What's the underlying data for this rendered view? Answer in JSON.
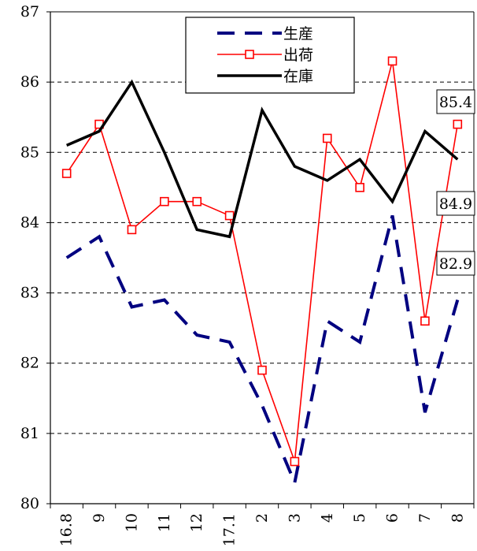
{
  "chart_data": {
    "type": "line",
    "categories": [
      "16.8",
      "9",
      "10",
      "11",
      "12",
      "17.1",
      "2",
      "3",
      "4",
      "5",
      "6",
      "7",
      "8"
    ],
    "ylim": [
      80,
      87
    ],
    "yticks": [
      80,
      81,
      82,
      83,
      84,
      85,
      86,
      87
    ],
    "grid": "horizontal dashed",
    "legend_position": "top-center",
    "series": [
      {
        "name": "生産",
        "style": "dashed",
        "color": "#000080",
        "marker": "none",
        "values": [
          83.5,
          83.8,
          82.8,
          82.9,
          82.4,
          82.3,
          81.4,
          80.3,
          82.6,
          82.3,
          84.1,
          81.3,
          82.9
        ]
      },
      {
        "name": "出荷",
        "style": "solid",
        "color": "#ff0000",
        "marker": "square",
        "values": [
          84.7,
          85.4,
          83.9,
          84.3,
          84.3,
          84.1,
          81.9,
          80.6,
          85.2,
          84.5,
          86.3,
          82.6,
          85.4
        ]
      },
      {
        "name": "在庫",
        "style": "solid-thick",
        "color": "#000000",
        "marker": "none",
        "values": [
          85.1,
          85.3,
          86.0,
          85.0,
          83.9,
          83.8,
          85.6,
          84.8,
          84.6,
          84.9,
          84.3,
          85.3,
          84.9
        ]
      }
    ],
    "data_labels": [
      {
        "text": "85.4",
        "series": "出荷"
      },
      {
        "text": "84.9",
        "series": "在庫"
      },
      {
        "text": "82.9",
        "series": "生産"
      }
    ]
  }
}
